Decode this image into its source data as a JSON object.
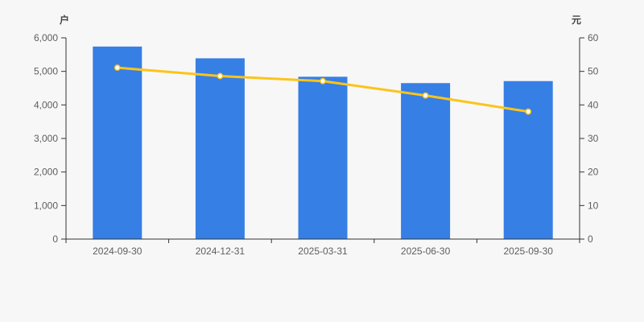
{
  "chart_data": {
    "type": "combo",
    "categories": [
      "2024-09-30",
      "2024-12-31",
      "2025-03-31",
      "2025-06-30",
      "2025-09-30"
    ],
    "series": [
      {
        "type": "bar",
        "yaxis": "left",
        "unit": "户",
        "values": [
          5740,
          5390,
          4840,
          4650,
          4710
        ]
      },
      {
        "type": "line",
        "yaxis": "right",
        "unit": "元",
        "values": [
          51.1,
          48.6,
          47.1,
          42.8,
          38.0
        ]
      }
    ],
    "yaxis_left": {
      "label": "户",
      "min": 0,
      "max": 6000,
      "tick_labels": [
        "0",
        "1,000",
        "2,000",
        "3,000",
        "4,000",
        "5,000",
        "6,000"
      ]
    },
    "yaxis_right": {
      "label": "元",
      "min": 0,
      "max": 60,
      "tick_labels": [
        "0",
        "10",
        "20",
        "30",
        "40",
        "50",
        "60"
      ]
    },
    "title": "",
    "legend": "none",
    "grid": false,
    "colors": {
      "background": "#f7f7f7",
      "bar": "#367fe5",
      "line": "#fcc41a",
      "marker_fill": "#ffffff",
      "axis": "#333333",
      "tick_text": "#5e5e5e",
      "axis_name_text": "#444444"
    }
  }
}
